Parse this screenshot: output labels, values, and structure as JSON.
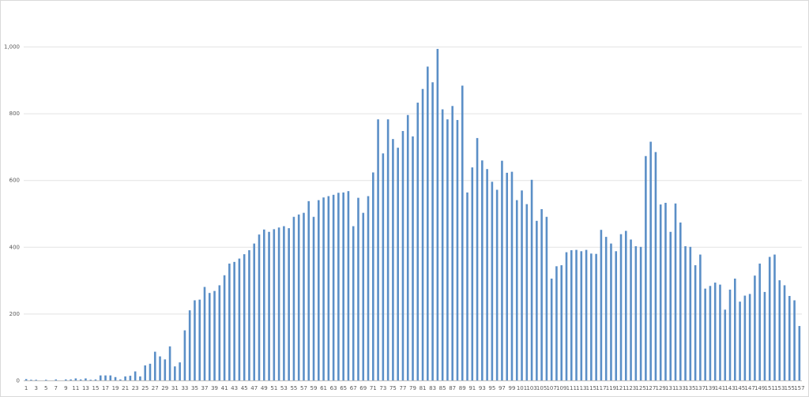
{
  "chart_data": {
    "type": "bar",
    "title": "",
    "xlabel": "",
    "ylabel": "",
    "ylim": [
      0,
      1000
    ],
    "yticks": [
      0,
      200,
      400,
      600,
      800,
      1000
    ],
    "ytick_labels": [
      "0",
      "200",
      "400",
      "600",
      "800",
      "1,000"
    ],
    "grid": true,
    "legend": "none",
    "bar_color": "#5B8FC7",
    "x_label_step": 2,
    "categories_start": 1,
    "values": [
      4,
      2,
      2,
      0,
      2,
      0,
      3,
      0,
      3,
      3,
      6,
      3,
      6,
      2,
      3,
      15,
      15,
      15,
      10,
      3,
      12,
      14,
      27,
      12,
      45,
      50,
      86,
      72,
      63,
      102,
      42,
      54,
      150,
      210,
      240,
      242,
      280,
      262,
      268,
      285,
      315,
      350,
      355,
      365,
      378,
      390,
      410,
      437,
      452,
      445,
      453,
      458,
      462,
      456,
      490,
      497,
      502,
      537,
      490,
      540,
      548,
      552,
      556,
      562,
      563,
      567,
      462,
      547,
      502,
      552,
      623,
      782,
      680,
      782,
      723,
      697,
      747,
      795,
      731,
      832,
      873,
      940,
      893,
      993,
      812,
      782,
      822,
      780,
      883,
      563,
      638,
      726,
      659,
      633,
      595,
      571,
      658,
      622,
      625,
      540,
      569,
      528,
      601,
      478,
      513,
      490,
      305,
      342,
      345,
      384,
      390,
      391,
      387,
      391,
      380,
      379,
      451,
      430,
      410,
      387,
      438,
      448,
      422,
      402,
      400,
      672,
      715,
      684,
      527,
      532,
      445,
      530,
      473,
      402,
      400,
      345,
      377,
      275,
      283,
      293,
      287,
      212,
      272,
      305,
      236,
      254,
      259,
      314,
      350,
      265,
      370,
      377,
      300,
      285,
      253,
      240,
      163
    ]
  }
}
